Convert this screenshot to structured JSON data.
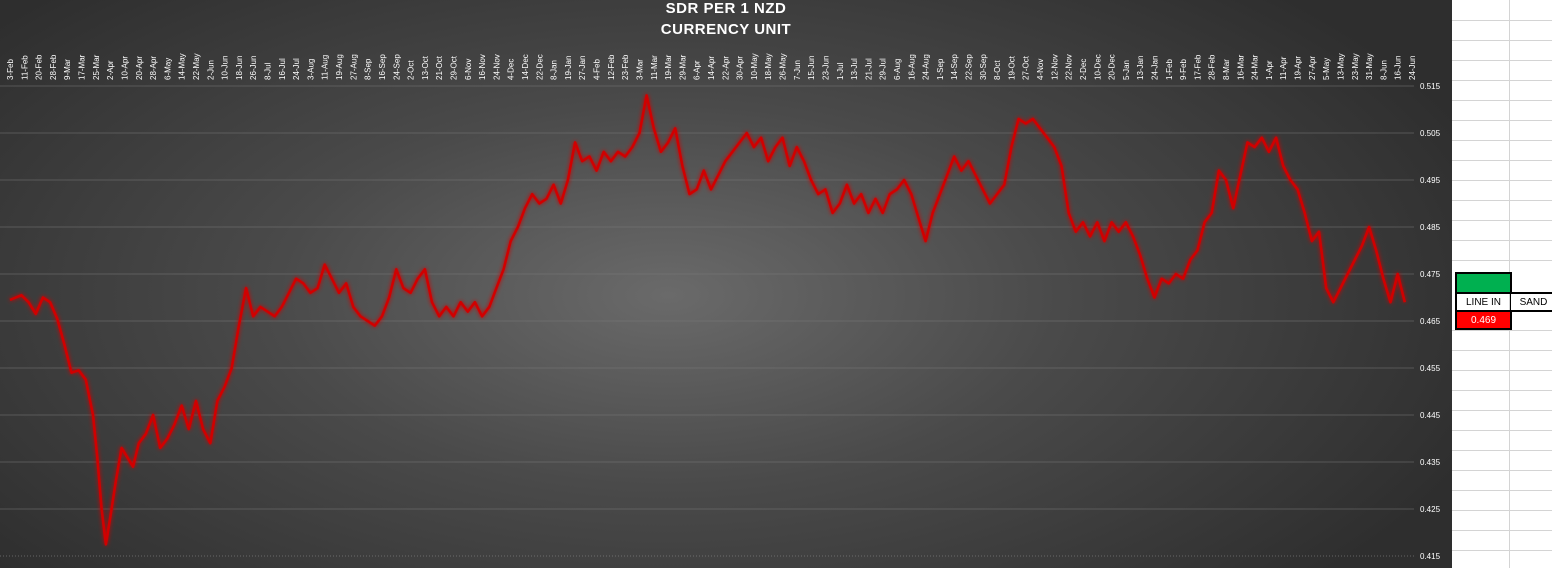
{
  "chart_data": {
    "type": "line",
    "title": "SDR PER 1 NZD",
    "subtitle": "CURRENCY UNIT",
    "x_ticks": [
      "3-Feb",
      "11-Feb",
      "20-Feb",
      "28-Feb",
      "9-Mar",
      "17-Mar",
      "25-Mar",
      "2-Apr",
      "10-Apr",
      "20-Apr",
      "28-Apr",
      "6-May",
      "14-May",
      "22-May",
      "2-Jun",
      "10-Jun",
      "18-Jun",
      "26-Jun",
      "8-Jul",
      "16-Jul",
      "24-Jul",
      "3-Aug",
      "11-Aug",
      "19-Aug",
      "27-Aug",
      "8-Sep",
      "16-Sep",
      "24-Sep",
      "2-Oct",
      "13-Oct",
      "21-Oct",
      "29-Oct",
      "6-Nov",
      "16-Nov",
      "24-Nov",
      "4-Dec",
      "14-Dec",
      "22-Dec",
      "8-Jan",
      "19-Jan",
      "27-Jan",
      "4-Feb",
      "12-Feb",
      "23-Feb",
      "3-Mar",
      "11-Mar",
      "19-Mar",
      "29-Mar",
      "6-Apr",
      "14-Apr",
      "22-Apr",
      "30-Apr",
      "10-May",
      "18-May",
      "26-May",
      "7-Jun",
      "15-Jun",
      "23-Jun",
      "1-Jul",
      "13-Jul",
      "21-Jul",
      "29-Jul",
      "6-Aug",
      "16-Aug",
      "24-Aug",
      "1-Sep",
      "14-Sep",
      "22-Sep",
      "30-Sep",
      "8-Oct",
      "19-Oct",
      "27-Oct",
      "4-Nov",
      "12-Nov",
      "22-Nov",
      "2-Dec",
      "10-Dec",
      "20-Dec",
      "5-Jan",
      "13-Jan",
      "24-Jan",
      "1-Feb",
      "9-Feb",
      "17-Feb",
      "28-Feb",
      "8-Mar",
      "16-Mar",
      "24-Mar",
      "1-Apr",
      "11-Apr",
      "19-Apr",
      "27-Apr",
      "5-May",
      "13-May",
      "23-May",
      "31-May",
      "8-Jun",
      "16-Jun",
      "24-Jun"
    ],
    "y_ticks": [
      "0.515",
      "0.505",
      "0.495",
      "0.485",
      "0.475",
      "0.465",
      "0.455",
      "0.445",
      "0.435",
      "0.425",
      "0.415"
    ],
    "ylim": [
      0.415,
      0.515
    ],
    "grid": true,
    "series": [
      {
        "color": "#d00000",
        "points": [
          [
            0,
            0.4695
          ],
          [
            0.8,
            0.4705
          ],
          [
            1.3,
            0.469
          ],
          [
            1.8,
            0.4665
          ],
          [
            2.3,
            0.47
          ],
          [
            2.8,
            0.469
          ],
          [
            3.3,
            0.4655
          ],
          [
            3.8,
            0.46
          ],
          [
            4.3,
            0.454
          ],
          [
            4.8,
            0.4545
          ],
          [
            5.3,
            0.4525
          ],
          [
            5.8,
            0.445
          ],
          [
            6.1,
            0.436
          ],
          [
            6.4,
            0.425
          ],
          [
            6.7,
            0.4175
          ],
          [
            7.0,
            0.423
          ],
          [
            7.4,
            0.431
          ],
          [
            7.8,
            0.438
          ],
          [
            8.2,
            0.436
          ],
          [
            8.6,
            0.434
          ],
          [
            9.0,
            0.439
          ],
          [
            9.5,
            0.441
          ],
          [
            10.0,
            0.445
          ],
          [
            10.5,
            0.438
          ],
          [
            11.0,
            0.44
          ],
          [
            11.5,
            0.443
          ],
          [
            12.0,
            0.447
          ],
          [
            12.5,
            0.442
          ],
          [
            13.0,
            0.448
          ],
          [
            13.5,
            0.442
          ],
          [
            14.0,
            0.439
          ],
          [
            14.5,
            0.448
          ],
          [
            15.0,
            0.451
          ],
          [
            15.5,
            0.455
          ],
          [
            16.0,
            0.464
          ],
          [
            16.5,
            0.472
          ],
          [
            17.0,
            0.466
          ],
          [
            17.5,
            0.468
          ],
          [
            18.0,
            0.467
          ],
          [
            18.5,
            0.466
          ],
          [
            19.0,
            0.468
          ],
          [
            19.5,
            0.471
          ],
          [
            20.0,
            0.474
          ],
          [
            20.5,
            0.473
          ],
          [
            21.0,
            0.471
          ],
          [
            21.5,
            0.472
          ],
          [
            22.0,
            0.477
          ],
          [
            22.5,
            0.474
          ],
          [
            23.0,
            0.471
          ],
          [
            23.5,
            0.473
          ],
          [
            24.0,
            0.468
          ],
          [
            24.5,
            0.466
          ],
          [
            25.0,
            0.465
          ],
          [
            25.5,
            0.464
          ],
          [
            26.0,
            0.466
          ],
          [
            26.5,
            0.47
          ],
          [
            27.0,
            0.476
          ],
          [
            27.5,
            0.472
          ],
          [
            28.0,
            0.471
          ],
          [
            28.5,
            0.474
          ],
          [
            29.0,
            0.476
          ],
          [
            29.5,
            0.469
          ],
          [
            30.0,
            0.466
          ],
          [
            30.5,
            0.468
          ],
          [
            31.0,
            0.466
          ],
          [
            31.5,
            0.469
          ],
          [
            32.0,
            0.467
          ],
          [
            32.5,
            0.469
          ],
          [
            33.0,
            0.466
          ],
          [
            33.5,
            0.468
          ],
          [
            34.0,
            0.472
          ],
          [
            34.5,
            0.476
          ],
          [
            35.0,
            0.482
          ],
          [
            35.5,
            0.485
          ],
          [
            36.0,
            0.489
          ],
          [
            36.5,
            0.492
          ],
          [
            37.0,
            0.49
          ],
          [
            37.5,
            0.491
          ],
          [
            38.0,
            0.494
          ],
          [
            38.5,
            0.49
          ],
          [
            39.0,
            0.495
          ],
          [
            39.5,
            0.503
          ],
          [
            40.0,
            0.499
          ],
          [
            40.5,
            0.5
          ],
          [
            41.0,
            0.497
          ],
          [
            41.5,
            0.501
          ],
          [
            42.0,
            0.499
          ],
          [
            42.5,
            0.501
          ],
          [
            43.0,
            0.5
          ],
          [
            43.5,
            0.502
          ],
          [
            44.0,
            0.505
          ],
          [
            44.5,
            0.513
          ],
          [
            45.0,
            0.506
          ],
          [
            45.5,
            0.501
          ],
          [
            46.0,
            0.503
          ],
          [
            46.5,
            0.506
          ],
          [
            47.0,
            0.498
          ],
          [
            47.5,
            0.492
          ],
          [
            48.0,
            0.493
          ],
          [
            48.5,
            0.497
          ],
          [
            49.0,
            0.493
          ],
          [
            49.5,
            0.496
          ],
          [
            50.0,
            0.499
          ],
          [
            50.5,
            0.501
          ],
          [
            51.0,
            0.503
          ],
          [
            51.5,
            0.505
          ],
          [
            52.0,
            0.502
          ],
          [
            52.5,
            0.504
          ],
          [
            53.0,
            0.499
          ],
          [
            53.5,
            0.502
          ],
          [
            54.0,
            0.504
          ],
          [
            54.5,
            0.498
          ],
          [
            55.0,
            0.502
          ],
          [
            55.5,
            0.499
          ],
          [
            56.0,
            0.495
          ],
          [
            56.5,
            0.492
          ],
          [
            57.0,
            0.493
          ],
          [
            57.5,
            0.488
          ],
          [
            58.0,
            0.49
          ],
          [
            58.5,
            0.494
          ],
          [
            59.0,
            0.49
          ],
          [
            59.5,
            0.492
          ],
          [
            60.0,
            0.488
          ],
          [
            60.5,
            0.491
          ],
          [
            61.0,
            0.488
          ],
          [
            61.5,
            0.492
          ],
          [
            62.0,
            0.493
          ],
          [
            62.5,
            0.495
          ],
          [
            63.0,
            0.492
          ],
          [
            63.5,
            0.487
          ],
          [
            64.0,
            0.482
          ],
          [
            64.5,
            0.488
          ],
          [
            65.0,
            0.492
          ],
          [
            65.5,
            0.496
          ],
          [
            66.0,
            0.5
          ],
          [
            66.5,
            0.497
          ],
          [
            67.0,
            0.499
          ],
          [
            67.5,
            0.496
          ],
          [
            68.0,
            0.493
          ],
          [
            68.5,
            0.49
          ],
          [
            69.0,
            0.492
          ],
          [
            69.5,
            0.494
          ],
          [
            70.0,
            0.502
          ],
          [
            70.5,
            0.508
          ],
          [
            71.0,
            0.507
          ],
          [
            71.5,
            0.508
          ],
          [
            72.0,
            0.506
          ],
          [
            72.5,
            0.504
          ],
          [
            73.0,
            0.502
          ],
          [
            73.5,
            0.498
          ],
          [
            74.0,
            0.488
          ],
          [
            74.5,
            0.484
          ],
          [
            75.0,
            0.486
          ],
          [
            75.5,
            0.483
          ],
          [
            76.0,
            0.486
          ],
          [
            76.5,
            0.482
          ],
          [
            77.0,
            0.486
          ],
          [
            77.5,
            0.484
          ],
          [
            78.0,
            0.486
          ],
          [
            78.5,
            0.483
          ],
          [
            79.0,
            0.479
          ],
          [
            79.5,
            0.474
          ],
          [
            80.0,
            0.47
          ],
          [
            80.5,
            0.474
          ],
          [
            81.0,
            0.473
          ],
          [
            81.5,
            0.475
          ],
          [
            82.0,
            0.474
          ],
          [
            82.5,
            0.478
          ],
          [
            83.0,
            0.48
          ],
          [
            83.5,
            0.486
          ],
          [
            84.0,
            0.488
          ],
          [
            84.5,
            0.497
          ],
          [
            85.0,
            0.495
          ],
          [
            85.5,
            0.489
          ],
          [
            86.0,
            0.496
          ],
          [
            86.5,
            0.503
          ],
          [
            87.0,
            0.502
          ],
          [
            87.5,
            0.504
          ],
          [
            88.0,
            0.501
          ],
          [
            88.5,
            0.504
          ],
          [
            89.0,
            0.498
          ],
          [
            89.5,
            0.495
          ],
          [
            90.0,
            0.493
          ],
          [
            90.5,
            0.488
          ],
          [
            91.0,
            0.482
          ],
          [
            91.5,
            0.484
          ],
          [
            92.0,
            0.472
          ],
          [
            92.5,
            0.469
          ],
          [
            93.0,
            0.472
          ],
          [
            93.5,
            0.475
          ],
          [
            94.0,
            0.478
          ],
          [
            94.5,
            0.481
          ],
          [
            95.0,
            0.485
          ],
          [
            95.5,
            0.48
          ],
          [
            96.0,
            0.474
          ],
          [
            96.5,
            0.469
          ],
          [
            97.0,
            0.475
          ],
          [
            97.5,
            0.469
          ]
        ]
      }
    ]
  },
  "sheet": {
    "label_line_in": "LINE IN",
    "label_sand": "SAND",
    "value_line_in": "0.469",
    "green_color": "#00b050",
    "red_color": "#ff0000"
  }
}
